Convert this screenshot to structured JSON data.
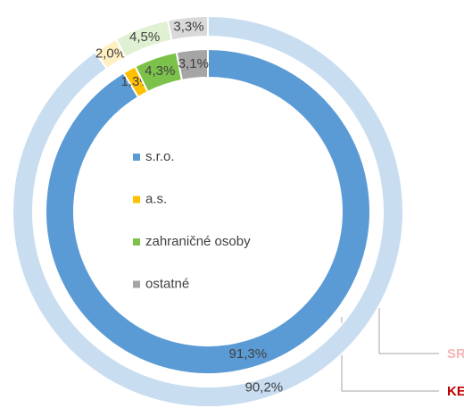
{
  "chart_data": {
    "type": "donut",
    "categories": [
      "s.r.o.",
      "a.s.",
      "zahraničné osoby",
      "ostatné"
    ],
    "series": [
      {
        "name": "KE",
        "color": "#c00000",
        "colors": [
          "#5b9bd5",
          "#ffc000",
          "#7cc24a",
          "#a5a5a5"
        ],
        "values": [
          91.3,
          1.3,
          4.3,
          3.1
        ],
        "value_labels": [
          "91,3%",
          "1,3%",
          "4,3%",
          "3,1%"
        ]
      },
      {
        "name": "SR",
        "color": "#f4b6b6",
        "colors": [
          "#c9ddf1",
          "#fff0c2",
          "#e0f0d3",
          "#d9d9d9"
        ],
        "values": [
          90.2,
          2.0,
          4.5,
          3.3
        ],
        "value_labels": [
          "90,2%",
          "2,0%",
          "4,5%",
          "3,3%"
        ]
      }
    ],
    "legend_colors": [
      "#5b9bd5",
      "#ffc000",
      "#7cc24a",
      "#a5a5a5"
    ]
  }
}
